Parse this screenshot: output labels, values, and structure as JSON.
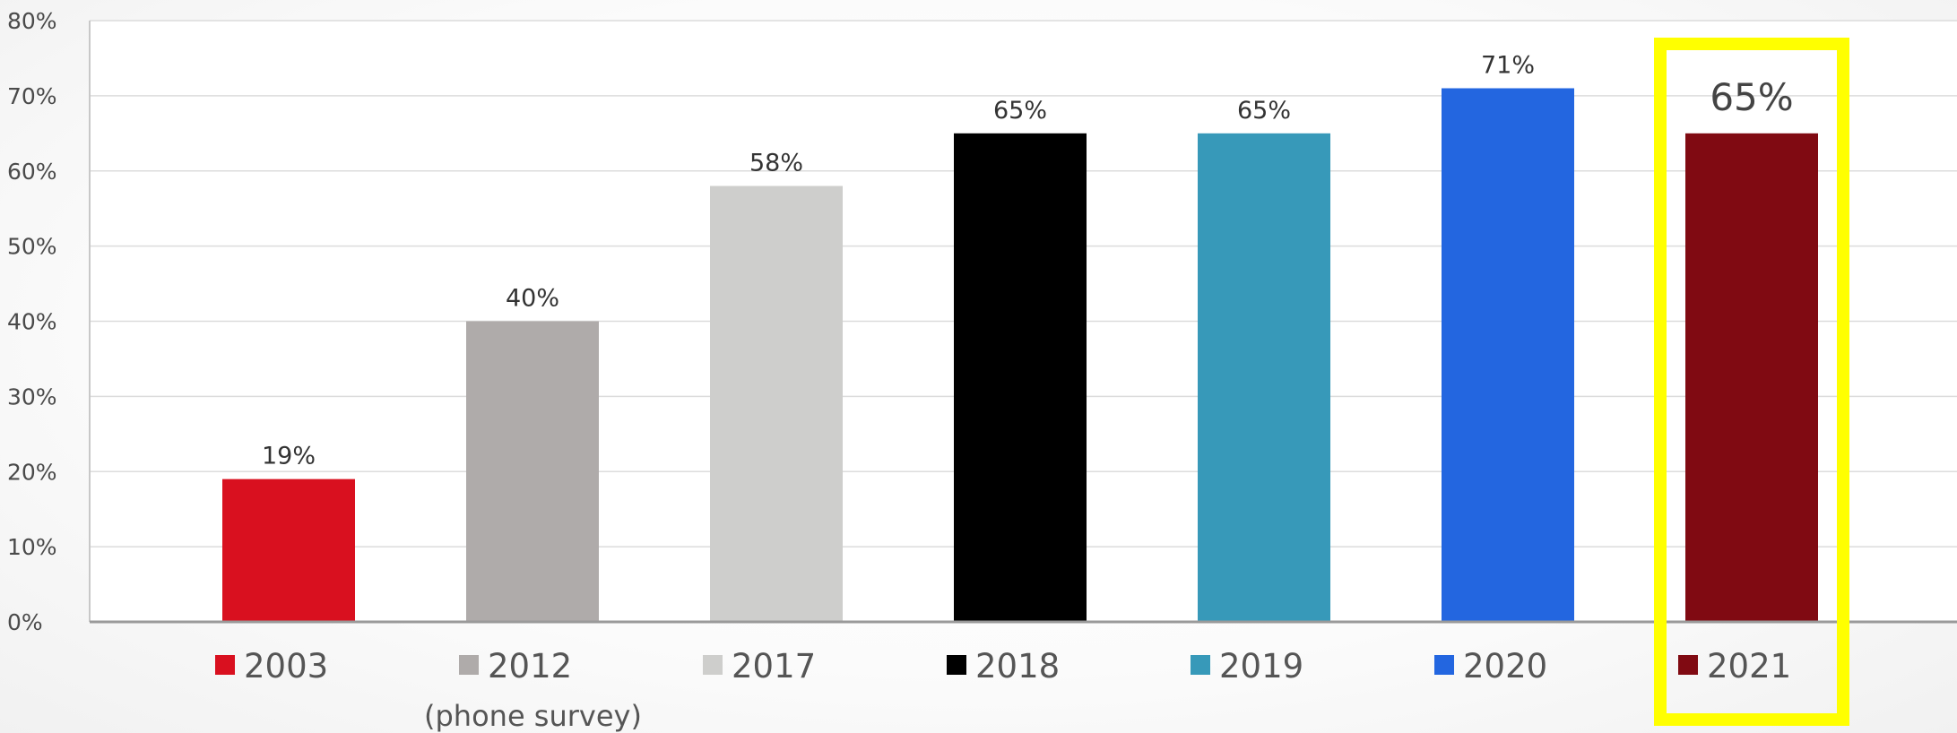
{
  "chart_data": {
    "type": "bar",
    "categories": [
      "2003",
      "2012",
      "2017",
      "2018",
      "2019",
      "2020",
      "2021"
    ],
    "values": [
      19,
      40,
      58,
      65,
      65,
      71,
      65
    ],
    "data_labels": [
      "19%",
      "40%",
      "58%",
      "65%",
      "65%",
      "71%",
      "65%"
    ],
    "colors": [
      "#d9101f",
      "#afabaa",
      "#cececc",
      "#000000",
      "#3799b9",
      "#2366e0",
      "#800a12"
    ],
    "legend": [
      {
        "label": "2003",
        "note": ""
      },
      {
        "label": "2012",
        "note": "(phone survey)"
      },
      {
        "label": "2017",
        "note": ""
      },
      {
        "label": "2018",
        "note": ""
      },
      {
        "label": "2019",
        "note": ""
      },
      {
        "label": "2020",
        "note": ""
      },
      {
        "label": "2021",
        "note": ""
      }
    ],
    "legend_placement": "bottom",
    "ylim": [
      0,
      80
    ],
    "y_ticks": [
      0,
      10,
      20,
      30,
      40,
      50,
      60,
      70,
      80
    ],
    "y_tick_labels": [
      "0%",
      "10%",
      "20%",
      "30%",
      "40%",
      "50%",
      "60%",
      "70%",
      "80%"
    ],
    "grid": true,
    "highlight": {
      "category": "2021",
      "color": "#ffff00"
    },
    "title": "",
    "xlabel": "",
    "ylabel": ""
  }
}
